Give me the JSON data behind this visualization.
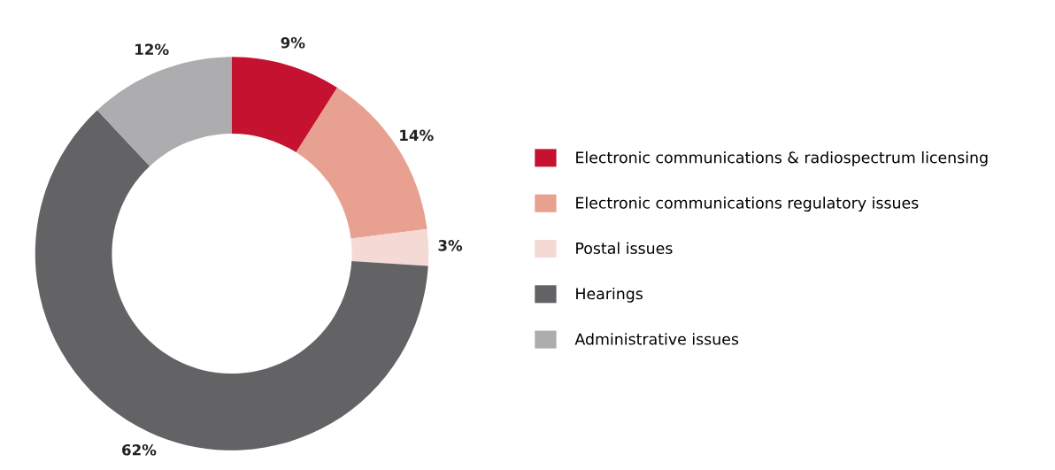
{
  "chart_data": {
    "type": "donut",
    "categories": [
      "Electronic communications & radiospectrum licensing",
      "Electronic communications regulatory issues",
      "Postal issues",
      "Hearings",
      "Administrative issues"
    ],
    "values": [
      9,
      14,
      3,
      62,
      12
    ],
    "colors": [
      "#c41230",
      "#e8a091",
      "#f5d9d4",
      "#636365",
      "#adadb0"
    ],
    "value_labels": [
      "9%",
      "14%",
      "3%",
      "62%",
      "12%"
    ],
    "legend": "right"
  }
}
